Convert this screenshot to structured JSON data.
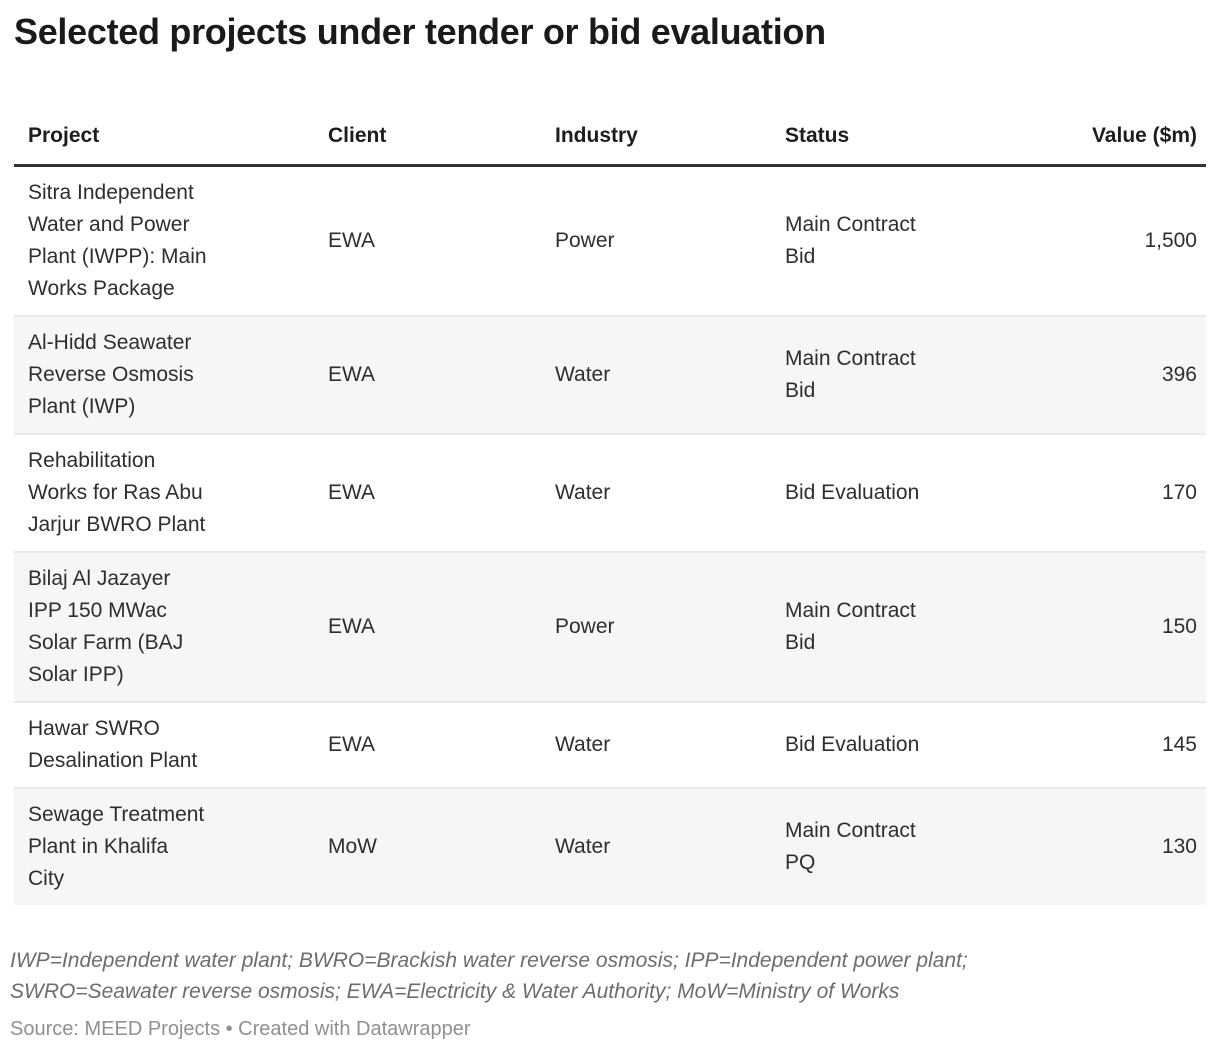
{
  "title": "Selected projects under tender or bid evaluation",
  "table": {
    "columns": [
      {
        "label": "Project"
      },
      {
        "label": "Client"
      },
      {
        "label": "Industry"
      },
      {
        "label": "Status"
      },
      {
        "label": "Value ($m)"
      }
    ],
    "rows": [
      {
        "project": "Sitra Independent\nWater and Power\nPlant (IWPP): Main\nWorks Package",
        "client": "EWA",
        "industry": "Power",
        "status": "Main Contract\nBid",
        "value": "1,500"
      },
      {
        "project": "Al-Hidd Seawater\nReverse Osmosis\nPlant (IWP)",
        "client": "EWA",
        "industry": "Water",
        "status": "Main Contract\nBid",
        "value": "396"
      },
      {
        "project": "Rehabilitation\nWorks for Ras Abu\nJarjur BWRO Plant",
        "client": "EWA",
        "industry": "Water",
        "status": "Bid Evaluation",
        "value": "170"
      },
      {
        "project": "Bilaj Al Jazayer\nIPP 150 MWac\nSolar Farm (BAJ\nSolar IPP)",
        "client": "EWA",
        "industry": "Power",
        "status": "Main Contract\nBid",
        "value": "150"
      },
      {
        "project": "Hawar SWRO\nDesalination Plant",
        "client": "EWA",
        "industry": "Water",
        "status": "Bid Evaluation",
        "value": "145"
      },
      {
        "project": "Sewage Treatment\nPlant in Khalifa\nCity",
        "client": "MoW",
        "industry": "Water",
        "status": "Main Contract\nPQ",
        "value": "130"
      }
    ],
    "colors": {
      "zebra": "#f6f6f6",
      "header_rule": "#333333",
      "row_divider": "#e8e8e8"
    }
  },
  "footnote": "IWP=Independent water plant; BWRO=Brackish water reverse osmosis; IPP=Independent power plant;\nSWRO=Seawater reverse osmosis; EWA=Electricity & Water Authority; MoW=Ministry of Works",
  "source": "Source: MEED Projects • Created with Datawrapper",
  "chart_data": {
    "type": "table",
    "title": "Selected projects under tender or bid evaluation",
    "columns": [
      "Project",
      "Client",
      "Industry",
      "Status",
      "Value ($m)"
    ],
    "rows": [
      [
        "Sitra Independent Water and Power Plant (IWPP): Main Works Package",
        "EWA",
        "Power",
        "Main Contract Bid",
        1500
      ],
      [
        "Al-Hidd Seawater Reverse Osmosis Plant (IWP)",
        "EWA",
        "Water",
        "Main Contract Bid",
        396
      ],
      [
        "Rehabilitation Works for Ras Abu Jarjur BWRO Plant",
        "EWA",
        "Water",
        "Bid Evaluation",
        170
      ],
      [
        "Bilaj Al Jazayer IPP 150 MWac Solar Farm (BAJ Solar IPP)",
        "EWA",
        "Power",
        "Main Contract Bid",
        150
      ],
      [
        "Hawar SWRO Desalination Plant",
        "EWA",
        "Water",
        "Bid Evaluation",
        145
      ],
      [
        "Sewage Treatment Plant in Khalifa City",
        "MoW",
        "Water",
        "Main Contract PQ",
        130
      ]
    ],
    "notes": "IWP=Independent water plant; BWRO=Brackish water reverse osmosis; IPP=Independent power plant; SWRO=Seawater reverse osmosis; EWA=Electricity & Water Authority; MoW=Ministry of Works",
    "source": "MEED Projects"
  }
}
